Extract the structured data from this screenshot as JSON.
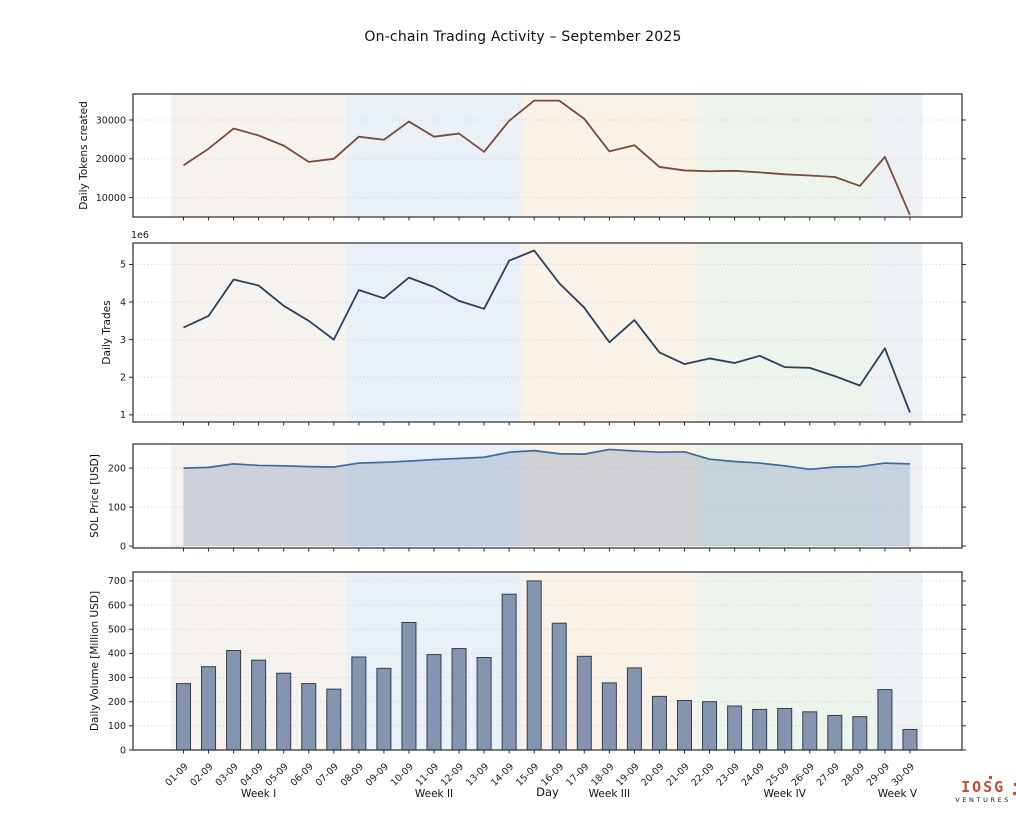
{
  "title": "On-chain Trading Activity – September 2025",
  "xlabel": "Day",
  "logo": {
    "name": "IOSG",
    "subtext": "VENTURES"
  },
  "categories": [
    "01-09",
    "02-09",
    "03-09",
    "04-09",
    "05-09",
    "06-09",
    "07-09",
    "08-09",
    "09-09",
    "10-09",
    "11-09",
    "12-09",
    "13-09",
    "14-09",
    "15-09",
    "16-09",
    "17-09",
    "18-09",
    "19-09",
    "20-09",
    "21-09",
    "22-09",
    "23-09",
    "24-09",
    "25-09",
    "26-09",
    "27-09",
    "28-09",
    "29-09",
    "30-09"
  ],
  "week_bands": [
    {
      "label": "Week I",
      "start_day": 1,
      "end_day": 7,
      "color": "#f6f3ef"
    },
    {
      "label": "Week II",
      "start_day": 8,
      "end_day": 14,
      "color": "#e9f0f8"
    },
    {
      "label": "Week III",
      "start_day": 15,
      "end_day": 21,
      "color": "#faf1e7"
    },
    {
      "label": "Week IV",
      "start_day": 22,
      "end_day": 28,
      "color": "#ecf4ec"
    },
    {
      "label": "Week V",
      "start_day": 29,
      "end_day": 30,
      "color": "#eef1f4"
    }
  ],
  "chart_data": [
    {
      "type": "line",
      "name": "daily-tokens-created",
      "ylabel": "Daily Tokens created",
      "yticks": [
        10000,
        20000,
        30000
      ],
      "ylim": [
        5000,
        36700
      ],
      "color": "#7b4a38",
      "grid": true,
      "legend": "none",
      "values": [
        18300,
        22600,
        27800,
        26000,
        23400,
        19200,
        20000,
        25700,
        24900,
        29600,
        25700,
        26500,
        21800,
        29800,
        35000,
        35000,
        30300,
        21900,
        23500,
        17900,
        17000,
        16800,
        16900,
        16500,
        16000,
        15700,
        15300,
        13000,
        20500,
        5500
      ]
    },
    {
      "type": "line",
      "name": "daily-trades",
      "ylabel": "Daily Trades",
      "offset_label": "1e6",
      "unit_multiplier": 1000000,
      "yticks": [
        1,
        2,
        3,
        4,
        5
      ],
      "ylim": [
        0.81,
        5.57
      ],
      "color": "#27425c",
      "grid": true,
      "legend": "none",
      "values": [
        3.32,
        3.63,
        4.6,
        4.44,
        3.9,
        3.5,
        3.0,
        4.32,
        4.1,
        4.65,
        4.4,
        4.03,
        3.82,
        5.1,
        5.37,
        4.5,
        3.85,
        2.93,
        3.52,
        2.66,
        2.35,
        2.5,
        2.38,
        2.57,
        2.27,
        2.25,
        2.03,
        1.78,
        2.77,
        1.06
      ]
    },
    {
      "type": "area",
      "name": "sol-price",
      "ylabel": "SOL Price [USD]",
      "yticks": [
        0,
        100,
        200
      ],
      "ylim": [
        -5,
        262
      ],
      "color": "#3a6ba5",
      "fill_color": "rgba(130,150,180,0.35)",
      "grid": true,
      "legend": "none",
      "values": [
        200,
        202,
        211,
        207,
        206,
        204,
        203,
        213,
        215,
        218,
        222,
        225,
        228,
        241,
        245,
        237,
        236,
        248,
        244,
        241,
        242,
        223,
        217,
        213,
        206,
        197,
        203,
        204,
        213,
        211
      ]
    },
    {
      "type": "bar",
      "name": "daily-volume",
      "ylabel": "Daily Volume [Million USD]",
      "yticks": [
        0,
        100,
        200,
        300,
        400,
        500,
        600,
        700
      ],
      "ylim": [
        0,
        737
      ],
      "bar_color": "#8595b0",
      "bar_edge": "#2f3e55",
      "grid": true,
      "legend": "none",
      "values": [
        275,
        345,
        412,
        372,
        318,
        275,
        252,
        385,
        338,
        528,
        395,
        420,
        383,
        645,
        700,
        525,
        388,
        278,
        340,
        222,
        205,
        200,
        182,
        168,
        172,
        158,
        143,
        138,
        250,
        85
      ]
    }
  ]
}
